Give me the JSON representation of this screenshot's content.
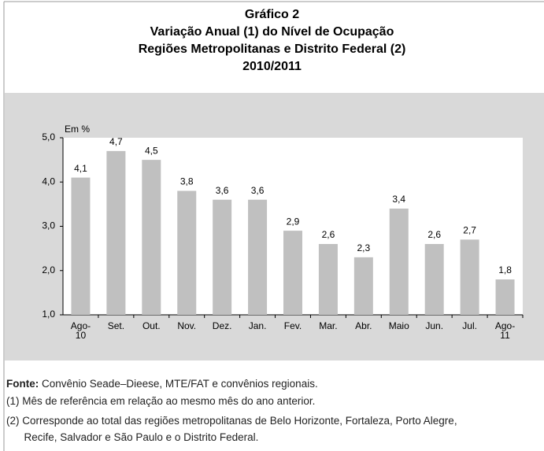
{
  "chart_data": {
    "type": "bar",
    "title_lines": [
      "Gráfico 2",
      "Variação Anual (1) do Nível de Ocupação",
      "Regiões Metropolitanas e Distrito Federal (2)",
      "2010/2011"
    ],
    "y_label": "Em %",
    "categories": [
      "Ago-\n10",
      "Set.",
      "Out.",
      "Nov.",
      "Dez.",
      "Jan.",
      "Fev.",
      "Mar.",
      "Abr.",
      "Maio",
      "Jun.",
      "Jul.",
      "Ago-\n11"
    ],
    "values": [
      4.1,
      4.7,
      4.5,
      3.8,
      3.6,
      3.6,
      2.9,
      2.6,
      2.3,
      3.4,
      2.6,
      2.7,
      1.8
    ],
    "value_labels": [
      "4,1",
      "4,7",
      "4,5",
      "3,8",
      "3,6",
      "3,6",
      "2,9",
      "2,6",
      "2,3",
      "3,4",
      "2,6",
      "2,7",
      "1,8"
    ],
    "color": "#c0c0c0",
    "ylim": [
      1,
      5
    ],
    "yticks": [
      {
        "value": 1,
        "label": "1,0"
      },
      {
        "value": 2,
        "label": "2,0"
      },
      {
        "value": 3,
        "label": "3,0"
      },
      {
        "value": 4,
        "label": "4,0"
      },
      {
        "value": 5,
        "label": "5,0"
      }
    ]
  },
  "footer": {
    "source_label": "Fonte:",
    "source_text": " Convênio Seade–Dieese, MTE/FAT e convênios regionais.",
    "notes": [
      "(1) Mês de referência em relação ao mesmo mês do ano anterior.",
      "(2) Corresponde ao total das regiões metropolitanas de Belo Horizonte, Fortaleza, Porto Alegre,\n      Recife, Salvador e São Paulo e o Distrito Federal."
    ]
  }
}
